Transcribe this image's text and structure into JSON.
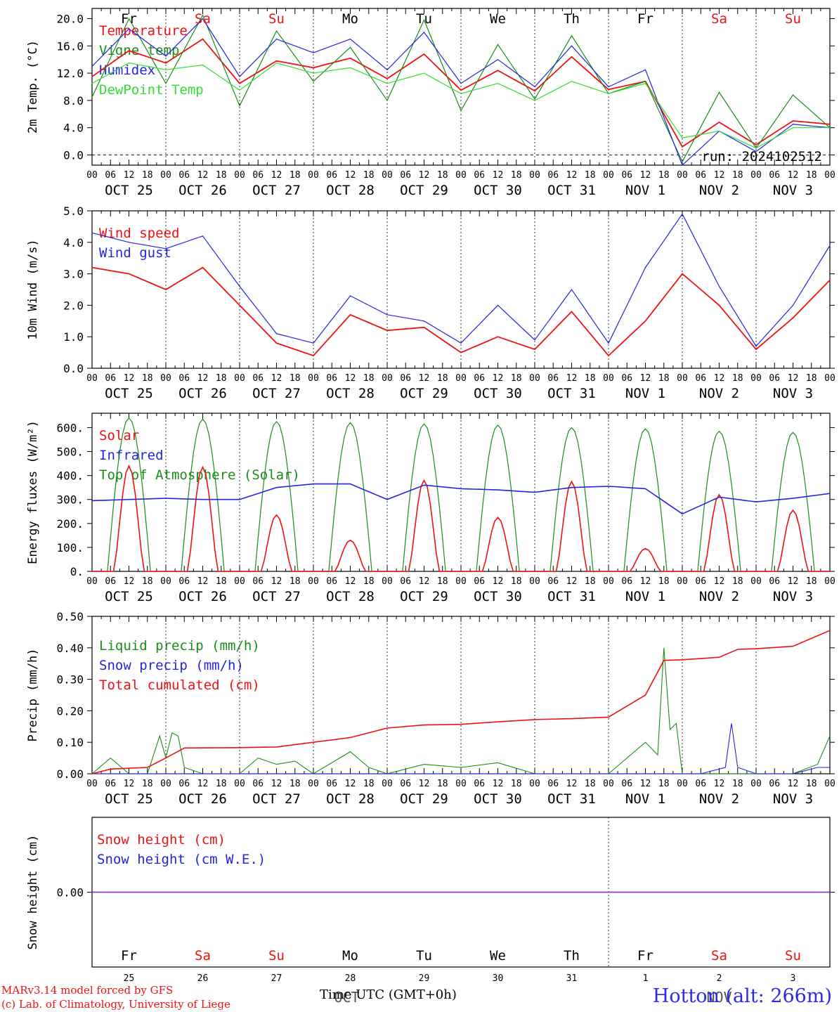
{
  "run_label": "run: 2024102512",
  "footer": {
    "model": "MARv3.14 model forced by GFS",
    "lab": "(c) Lab. of Climatology, University of Liege",
    "time_label": "Time UTC (GMT+0h)",
    "station": "Hotton (alt: 266m)"
  },
  "days": [
    {
      "dow": "Fr",
      "date": "OCT 25",
      "num": "25",
      "weekend": false
    },
    {
      "dow": "Sa",
      "date": "OCT 26",
      "num": "26",
      "weekend": true
    },
    {
      "dow": "Su",
      "date": "OCT 27",
      "num": "27",
      "weekend": true
    },
    {
      "dow": "Mo",
      "date": "OCT 28",
      "num": "28",
      "weekend": false
    },
    {
      "dow": "Tu",
      "date": "OCT 29",
      "num": "29",
      "weekend": false
    },
    {
      "dow": "We",
      "date": "OCT 30",
      "num": "30",
      "weekend": false
    },
    {
      "dow": "Th",
      "date": "OCT 31",
      "num": "31",
      "weekend": false
    },
    {
      "dow": "Fr",
      "date": "NOV  1",
      "num": "1",
      "weekend": false
    },
    {
      "dow": "Sa",
      "date": "NOV  2",
      "num": "2",
      "weekend": true
    },
    {
      "dow": "Su",
      "date": "NOV  3",
      "num": "3",
      "weekend": true
    }
  ],
  "hour_ticks": [
    "00",
    "06",
    "12",
    "18"
  ],
  "month_labels": [
    {
      "text": "OCT",
      "day_index": 3
    },
    {
      "text": "NOV",
      "day_index": 8
    }
  ],
  "colors": {
    "red": "#ee1111",
    "green": "#1a8c1a",
    "blue": "#2424e0",
    "light_green": "#33dd33",
    "purple": "#8b3fb0"
  },
  "chart_data": [
    {
      "type": "line",
      "ylabel": "2m Temp. (°C)",
      "ylim": [
        -1.5,
        21.5
      ],
      "yticks": [
        "0.0",
        "4.0",
        "8.0",
        "12.0",
        "16.0",
        "20.0"
      ],
      "ytick_values": [
        0,
        4,
        8,
        12,
        16,
        20
      ],
      "zero_line": true,
      "legend": [
        {
          "name": "Temperature",
          "color": "#ee1111"
        },
        {
          "name": "Vigne temp",
          "color": "#1a8c1a"
        },
        {
          "name": "Humidex",
          "color": "#2424e0"
        },
        {
          "name": "DewPoint Temp",
          "color": "#33dd33"
        }
      ],
      "x_hours": [
        0,
        12,
        24,
        36,
        48,
        60,
        72,
        84,
        96,
        108,
        120,
        132,
        144,
        156,
        168,
        180,
        192,
        204,
        216,
        228,
        240
      ],
      "series": [
        {
          "name": "Temperature",
          "color": "#ee1111",
          "values": [
            11.5,
            15.3,
            13.5,
            17.0,
            10.5,
            13.8,
            12.8,
            14.2,
            11.2,
            14.8,
            9.5,
            12.4,
            9.4,
            14.4,
            9.6,
            10.8,
            1.2,
            4.8,
            1.5,
            5.0,
            4.5
          ]
        },
        {
          "name": "Vigne temp",
          "color": "#1a8c1a",
          "values": [
            8.5,
            20.0,
            10.5,
            20.5,
            7.2,
            18.2,
            10.8,
            15.8,
            8.0,
            19.8,
            6.5,
            16.2,
            8.2,
            17.5,
            9.0,
            10.8,
            -1.0,
            9.2,
            1.0,
            8.8,
            4.0
          ]
        },
        {
          "name": "Humidex",
          "color": "#2424e0",
          "values": [
            13.0,
            18.5,
            14.5,
            20.0,
            11.5,
            17.0,
            15.0,
            17.0,
            12.5,
            18.0,
            10.5,
            14.0,
            10.0,
            16.0,
            10.0,
            12.5,
            -1.5,
            3.5,
            0.5,
            4.5,
            4.0
          ]
        },
        {
          "name": "DewPoint Temp",
          "color": "#33dd33",
          "values": [
            10.5,
            13.5,
            12.5,
            13.2,
            9.5,
            13.5,
            12.0,
            12.8,
            10.5,
            12.0,
            9.0,
            10.5,
            8.0,
            10.8,
            9.0,
            10.5,
            2.5,
            3.5,
            1.0,
            4.0,
            4.0
          ]
        }
      ]
    },
    {
      "type": "line",
      "ylabel": "10m Wind (m/s)",
      "ylim": [
        0,
        5
      ],
      "yticks": [
        "0.0",
        "1.0",
        "2.0",
        "3.0",
        "4.0",
        "5.0"
      ],
      "ytick_values": [
        0,
        1,
        2,
        3,
        4,
        5
      ],
      "legend": [
        {
          "name": "Wind speed",
          "color": "#ee1111"
        },
        {
          "name": "Wind gust",
          "color": "#2424e0"
        }
      ],
      "x_hours": [
        0,
        12,
        24,
        36,
        48,
        60,
        72,
        84,
        96,
        108,
        120,
        132,
        144,
        156,
        168,
        180,
        192,
        204,
        216,
        228,
        240
      ],
      "series": [
        {
          "name": "Wind speed",
          "color": "#ee1111",
          "values": [
            3.2,
            3.0,
            2.5,
            3.2,
            2.0,
            0.8,
            0.4,
            1.7,
            1.2,
            1.3,
            0.5,
            1.0,
            0.6,
            1.8,
            0.4,
            1.5,
            3.0,
            2.0,
            0.6,
            1.6,
            2.8
          ]
        },
        {
          "name": "Wind gust",
          "color": "#2424e0",
          "values": [
            4.3,
            4.0,
            3.8,
            4.2,
            2.6,
            1.1,
            0.8,
            2.3,
            1.7,
            1.5,
            0.8,
            2.0,
            0.9,
            2.5,
            0.8,
            3.2,
            4.9,
            2.6,
            0.7,
            2.0,
            3.9
          ]
        }
      ]
    },
    {
      "type": "line",
      "ylabel": "Energy fluxes (W/m²)",
      "ylim": [
        0,
        660
      ],
      "yticks": [
        "0.",
        "100.",
        "200.",
        "300.",
        "400.",
        "500.",
        "600."
      ],
      "ytick_values": [
        0,
        100,
        200,
        300,
        400,
        500,
        600
      ],
      "legend": [
        {
          "name": "Solar",
          "color": "#ee1111"
        },
        {
          "name": "Infrared",
          "color": "#2424e0"
        },
        {
          "name": "Top of Atmosphere (Solar)",
          "color": "#1a8c1a"
        }
      ],
      "daily_peaks": {
        "solar": [
          440,
          435,
          235,
          130,
          380,
          225,
          375,
          95,
          320,
          255
        ],
        "toa": [
          640,
          635,
          625,
          620,
          615,
          610,
          600,
          595,
          585,
          580
        ]
      },
      "x_hours": [
        0,
        12,
        24,
        36,
        48,
        60,
        72,
        84,
        96,
        108,
        120,
        132,
        144,
        156,
        168,
        180,
        192,
        204,
        216,
        228,
        240
      ],
      "infrared": [
        295,
        300,
        305,
        300,
        300,
        350,
        365,
        365,
        300,
        360,
        345,
        340,
        330,
        350,
        355,
        345,
        240,
        310,
        290,
        305,
        325
      ]
    },
    {
      "type": "line",
      "ylabel": "Precip (mm/h)",
      "ylim": [
        0,
        0.5
      ],
      "yticks": [
        "0.00",
        "0.10",
        "0.20",
        "0.30",
        "0.40",
        "0.50"
      ],
      "ytick_values": [
        0,
        0.1,
        0.2,
        0.3,
        0.4,
        0.5
      ],
      "legend": [
        {
          "name": "Liquid precip (mm/h)",
          "color": "#1a8c1a"
        },
        {
          "name": "Snow precip (mm/h)",
          "color": "#2424e0"
        },
        {
          "name": "Total cumulated (cm)",
          "color": "#ee1111"
        }
      ],
      "total_cumulated": {
        "x_hours": [
          0,
          6,
          18,
          24,
          30,
          48,
          60,
          72,
          84,
          96,
          108,
          120,
          132,
          144,
          156,
          168,
          180,
          186,
          192,
          204,
          210,
          216,
          228,
          240
        ],
        "values": [
          0.0,
          0.015,
          0.02,
          0.05,
          0.082,
          0.083,
          0.085,
          0.1,
          0.115,
          0.145,
          0.155,
          0.157,
          0.165,
          0.172,
          0.175,
          0.18,
          0.25,
          0.36,
          0.362,
          0.37,
          0.395,
          0.397,
          0.405,
          0.455
        ]
      },
      "liquid": {
        "x_hours": [
          0,
          6,
          12,
          18,
          22,
          24,
          26,
          28,
          30,
          36,
          48,
          54,
          60,
          66,
          72,
          84,
          90,
          96,
          108,
          120,
          132,
          144,
          168,
          174,
          180,
          184,
          186,
          188,
          190,
          192,
          204,
          216,
          228,
          236,
          240
        ],
        "values": [
          0,
          0.05,
          0.0,
          0.0,
          0.12,
          0.05,
          0.13,
          0.12,
          0.02,
          0.0,
          0.0,
          0.05,
          0.03,
          0.04,
          0.0,
          0.07,
          0.02,
          0.0,
          0.03,
          0.02,
          0.035,
          0.0,
          0.0,
          0.05,
          0.1,
          0.06,
          0.4,
          0.14,
          0.16,
          0.0,
          0.0,
          0.0,
          0.0,
          0.03,
          0.12
        ]
      },
      "snow": {
        "x_hours": [
          0,
          198,
          206,
          208,
          210,
          216,
          228,
          236,
          240
        ],
        "values": [
          0,
          0.0,
          0.02,
          0.16,
          0.02,
          0.0,
          0.0,
          0.02,
          0.02
        ]
      }
    },
    {
      "type": "line",
      "ylabel": "Snow height (cm)",
      "ylim": [
        -1,
        1
      ],
      "yticks": [
        "0.00"
      ],
      "ytick_values": [
        0
      ],
      "legend": [
        {
          "name": "Snow height (cm)",
          "color": "#ee1111"
        },
        {
          "name": "Snow height (cm W.E.)",
          "color": "#2424e0"
        }
      ],
      "x_hours": [
        0,
        240
      ],
      "series": [
        {
          "name": "Snow height (cm)",
          "color": "#8b3fb0",
          "values": [
            0,
            0
          ]
        }
      ]
    }
  ]
}
